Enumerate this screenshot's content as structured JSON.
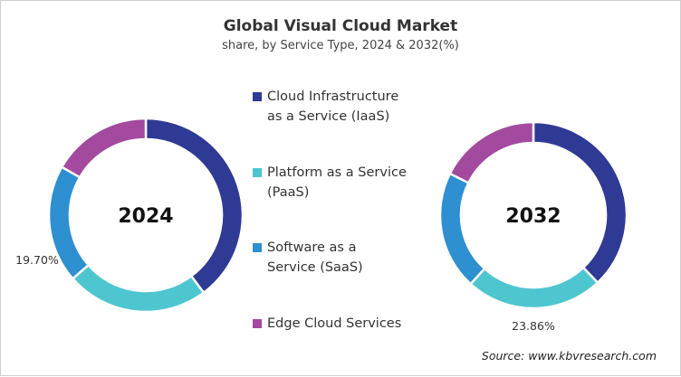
{
  "chart_data": {
    "type": "pie",
    "title": "Global Visual Cloud Market",
    "subtitle": "share, by Service Type, 2024 & 2032(%)",
    "categories": [
      "Cloud Infrastructure as a Service (IaaS)",
      "Platform as a Service (PaaS)",
      "Software as a Service (SaaS)",
      "Edge Cloud Services"
    ],
    "colors": [
      "#2e3a94",
      "#4ec6cf",
      "#2e8fd1",
      "#a34a9f"
    ],
    "legend_position": "center",
    "charts": [
      {
        "label": "2024",
        "values": [
          39.8,
          23.8,
          19.7,
          16.7
        ],
        "data_label": "19.70%",
        "data_label_index": 2
      },
      {
        "label": "2032",
        "values": [
          37.9,
          23.86,
          20.6,
          17.64
        ],
        "data_label": "23.86%",
        "data_label_index": 1
      }
    ]
  },
  "legend": [
    {
      "line1": "Cloud Infrastructure",
      "line2": "as a Service (IaaS)"
    },
    {
      "line1": "Platform as a Service",
      "line2": "(PaaS)"
    },
    {
      "line1": "Software as a",
      "line2": "Service (SaaS)"
    },
    {
      "line1": "Edge Cloud Services",
      "line2": ""
    }
  ],
  "source": "Source: www.kbvresearch.com"
}
